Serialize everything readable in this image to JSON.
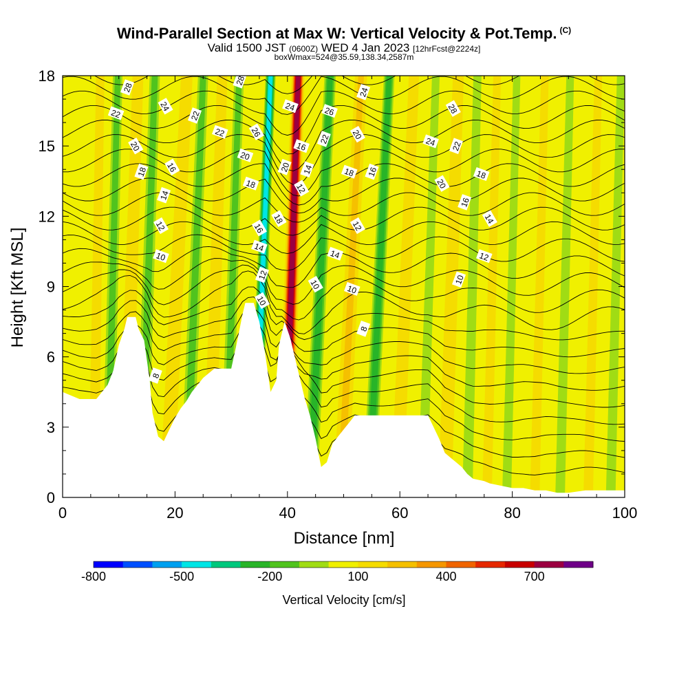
{
  "header": {
    "title": "Wind-Parallel Section at Max W: Vertical Velocity & Pot.Temp.",
    "copyright": "(C)",
    "valid_prefix": "Valid 1500 JST",
    "valid_utc": "(0600Z)",
    "valid_date": "WED 4 Jan 2023",
    "forecast": "[12hrFcst@2224z]",
    "box_info": "boxWmax=524@35.59,138.34,2587m"
  },
  "chart_data": {
    "type": "heatmap",
    "title": "Wind-Parallel Section at Max W: Vertical Velocity & Pot.Temp.",
    "xlabel": "Distance [nm]",
    "ylabel": "Height [Kft MSL]",
    "xlim": [
      0,
      100
    ],
    "ylim": [
      0,
      18
    ],
    "x_ticks": [
      0,
      20,
      40,
      60,
      80,
      100
    ],
    "y_ticks": [
      0,
      3,
      6,
      9,
      12,
      15,
      18
    ],
    "grid": false,
    "colorbar": {
      "label": "Vertical Velocity [cm/s]",
      "tick_labels": [
        "-800",
        "-500",
        "-200",
        "100",
        "400",
        "700"
      ],
      "tick_values": [
        -800,
        -500,
        -200,
        100,
        400,
        700
      ],
      "levels": [
        -800,
        -700,
        -600,
        -500,
        -400,
        -300,
        -200,
        -100,
        0,
        100,
        200,
        300,
        400,
        500,
        600,
        700,
        800,
        900
      ],
      "colors": [
        "#0000ff",
        "#0050ff",
        "#00a0f0",
        "#00e6e6",
        "#00c87d",
        "#28b428",
        "#50c31e",
        "#a0dc14",
        "#f0f000",
        "#f5dc00",
        "#f5c000",
        "#f59600",
        "#f06400",
        "#e62800",
        "#c80000",
        "#9b0041",
        "#6e0087"
      ]
    },
    "terrain_kft": [
      [
        0,
        4.5
      ],
      [
        3,
        4.2
      ],
      [
        6,
        4.2
      ],
      [
        8,
        4.8
      ],
      [
        9,
        5.4
      ],
      [
        10,
        6.5
      ],
      [
        11,
        7.2
      ],
      [
        11.5,
        7.7
      ],
      [
        13,
        7.7
      ],
      [
        13.5,
        7.2
      ],
      [
        14.5,
        6.7
      ],
      [
        15.5,
        5.0
      ],
      [
        16,
        3.6
      ],
      [
        17,
        2.6
      ],
      [
        18,
        2.4
      ],
      [
        19,
        2.9
      ],
      [
        20,
        3.4
      ],
      [
        21,
        3.8
      ],
      [
        22,
        4.1
      ],
      [
        23,
        4.5
      ],
      [
        24,
        4.8
      ],
      [
        25,
        5.1
      ],
      [
        26,
        5.3
      ],
      [
        27,
        5.5
      ],
      [
        29,
        5.5
      ],
      [
        30,
        5.5
      ],
      [
        31,
        6.6
      ],
      [
        32,
        7.8
      ],
      [
        32.5,
        8.3
      ],
      [
        34,
        8.3
      ],
      [
        35,
        7.5
      ],
      [
        36,
        6.2
      ],
      [
        37,
        4.5
      ],
      [
        38,
        5.0
      ],
      [
        38.5,
        6.5
      ],
      [
        39.5,
        7.5
      ],
      [
        40.5,
        6.8
      ],
      [
        42,
        5.3
      ],
      [
        43,
        4.3
      ],
      [
        44,
        3.5
      ],
      [
        45,
        2.5
      ],
      [
        46,
        1.3
      ],
      [
        47,
        1.5
      ],
      [
        48,
        2.3
      ],
      [
        49,
        2.6
      ],
      [
        50,
        2.9
      ],
      [
        51,
        3.2
      ],
      [
        52,
        3.5
      ],
      [
        53,
        3.5
      ],
      [
        60,
        3.5
      ],
      [
        64,
        3.5
      ],
      [
        65,
        3.5
      ],
      [
        66,
        3.0
      ],
      [
        67,
        2.5
      ],
      [
        68,
        1.9
      ],
      [
        69,
        1.7
      ],
      [
        70,
        1.5
      ],
      [
        71,
        1.3
      ],
      [
        72,
        1.0
      ],
      [
        73,
        0.8
      ],
      [
        75,
        0.7
      ],
      [
        76,
        0.6
      ],
      [
        78,
        0.5
      ],
      [
        80,
        0.4
      ],
      [
        82,
        0.4
      ],
      [
        84,
        0.3
      ],
      [
        86,
        0.3
      ],
      [
        88,
        0.2
      ],
      [
        90,
        0.2
      ],
      [
        93,
        0.3
      ],
      [
        95,
        0.3
      ],
      [
        100,
        0.3
      ]
    ],
    "bands": [
      {
        "x": 5.5,
        "w": 1.3,
        "w_top": 1.1,
        "base": 2,
        "lean": 0.2
      },
      {
        "x": 8,
        "w": 1.5,
        "w_top": -1.2,
        "base": 2,
        "lean": 0.3
      },
      {
        "x": 11,
        "w": 1.7,
        "w_top": 1.3,
        "base": 2,
        "lean": 0.4
      },
      {
        "x": 14,
        "w": 1.6,
        "w_top": -1.6,
        "base": 2,
        "lean": 0.4
      },
      {
        "x": 18.5,
        "w": 1.8,
        "w_top": 1.8,
        "base": 2,
        "lean": 0.6
      },
      {
        "x": 22,
        "w": 1.6,
        "w_top": -1.4,
        "base": 2,
        "lean": 0.5
      },
      {
        "x": 26,
        "w": 1.6,
        "w_top": 1.5,
        "base": 2,
        "lean": 0.4
      },
      {
        "x": 29,
        "w": 1.5,
        "w_top": -1.5,
        "base": 2,
        "lean": 0.4
      },
      {
        "x": 34,
        "w": 1.3,
        "w_top": -5.0,
        "base": 2,
        "lean": 0.5
      },
      {
        "x": 39.5,
        "w": 1.6,
        "w_top": 7.8,
        "base": 2,
        "lean": 0.4
      },
      {
        "x": 44,
        "w": 1.6,
        "w_top": -2.5,
        "base": 2,
        "lean": 0.6
      },
      {
        "x": 49.5,
        "w": 1.7,
        "w_top": 2.6,
        "base": 2,
        "lean": 0.6
      },
      {
        "x": 54.5,
        "w": 1.5,
        "w_top": -2.2,
        "base": 2,
        "lean": 0.6
      },
      {
        "x": 59.5,
        "w": 1.6,
        "w_top": 1.2,
        "base": 2,
        "lean": 0.5
      },
      {
        "x": 64,
        "w": 1.6,
        "w_top": -1.0,
        "base": 2,
        "lean": 0.4
      },
      {
        "x": 68,
        "w": 1.7,
        "w_top": 1.6,
        "base": 2,
        "lean": 0.4
      },
      {
        "x": 72,
        "w": 1.7,
        "w_top": -0.9,
        "base": 2,
        "lean": 0.3
      },
      {
        "x": 75.5,
        "w": 1.6,
        "w_top": 0.9,
        "base": 2,
        "lean": 0.3
      },
      {
        "x": 79,
        "w": 1.5,
        "w_top": -0.8,
        "base": 2,
        "lean": 0.3
      },
      {
        "x": 84,
        "w": 1.6,
        "w_top": 0.8,
        "base": 2,
        "lean": 0.3
      },
      {
        "x": 88.5,
        "w": 1.6,
        "w_top": -0.8,
        "base": 2,
        "lean": 0.3
      },
      {
        "x": 93.5,
        "w": 1.6,
        "w_top": 0.6,
        "base": 2,
        "lean": 0.3
      },
      {
        "x": 97.5,
        "w": 1.6,
        "w_top": -0.6,
        "base": 2,
        "lean": 0.3
      }
    ],
    "contour_labels": [
      {
        "text": "28",
        "x": 11.5,
        "y": 17.5
      },
      {
        "text": "24",
        "x": 18.3,
        "y": 16.7
      },
      {
        "text": "22",
        "x": 9.5,
        "y": 16.4
      },
      {
        "text": "22",
        "x": 23.5,
        "y": 16.3
      },
      {
        "text": "20",
        "x": 13,
        "y": 15.0
      },
      {
        "text": "22",
        "x": 28,
        "y": 15.6
      },
      {
        "text": "18",
        "x": 14,
        "y": 13.9
      },
      {
        "text": "16",
        "x": 19.5,
        "y": 14.1
      },
      {
        "text": "20",
        "x": 32.5,
        "y": 14.6
      },
      {
        "text": "28",
        "x": 31.5,
        "y": 17.8
      },
      {
        "text": "26",
        "x": 34.5,
        "y": 15.6
      },
      {
        "text": "18",
        "x": 33.5,
        "y": 13.4
      },
      {
        "text": "14",
        "x": 18,
        "y": 12.9
      },
      {
        "text": "12",
        "x": 17.5,
        "y": 11.6
      },
      {
        "text": "10",
        "x": 17.5,
        "y": 10.3
      },
      {
        "text": "8",
        "x": 16.5,
        "y": 5.2
      },
      {
        "text": "16",
        "x": 35,
        "y": 11.5
      },
      {
        "text": "14",
        "x": 35,
        "y": 10.7
      },
      {
        "text": "12",
        "x": 35.5,
        "y": 9.5
      },
      {
        "text": "10",
        "x": 35.5,
        "y": 8.4
      },
      {
        "text": "24",
        "x": 40.5,
        "y": 16.7
      },
      {
        "text": "20",
        "x": 39.5,
        "y": 14.1
      },
      {
        "text": "18",
        "x": 38.5,
        "y": 11.9
      },
      {
        "text": "16",
        "x": 42.5,
        "y": 15.0
      },
      {
        "text": "14",
        "x": 43.5,
        "y": 14.0
      },
      {
        "text": "12",
        "x": 42.5,
        "y": 13.2
      },
      {
        "text": "26",
        "x": 47.5,
        "y": 16.5
      },
      {
        "text": "22",
        "x": 46.5,
        "y": 15.3
      },
      {
        "text": "10",
        "x": 45,
        "y": 9.1
      },
      {
        "text": "14",
        "x": 48.5,
        "y": 10.4
      },
      {
        "text": "24",
        "x": 53.5,
        "y": 17.3
      },
      {
        "text": "20",
        "x": 52.5,
        "y": 15.5
      },
      {
        "text": "18",
        "x": 51,
        "y": 13.9
      },
      {
        "text": "16",
        "x": 55,
        "y": 13.9
      },
      {
        "text": "12",
        "x": 52.5,
        "y": 11.6
      },
      {
        "text": "10",
        "x": 51.5,
        "y": 8.9
      },
      {
        "text": "8",
        "x": 53.5,
        "y": 7.2
      },
      {
        "text": "28",
        "x": 69.5,
        "y": 16.6
      },
      {
        "text": "24",
        "x": 65.5,
        "y": 15.2
      },
      {
        "text": "22",
        "x": 70,
        "y": 15.0
      },
      {
        "text": "20",
        "x": 67.5,
        "y": 13.4
      },
      {
        "text": "18",
        "x": 74.5,
        "y": 13.8
      },
      {
        "text": "16",
        "x": 71.5,
        "y": 12.6
      },
      {
        "text": "14",
        "x": 76,
        "y": 11.9
      },
      {
        "text": "12",
        "x": 75,
        "y": 10.3
      },
      {
        "text": "10",
        "x": 70.5,
        "y": 9.3
      }
    ]
  }
}
